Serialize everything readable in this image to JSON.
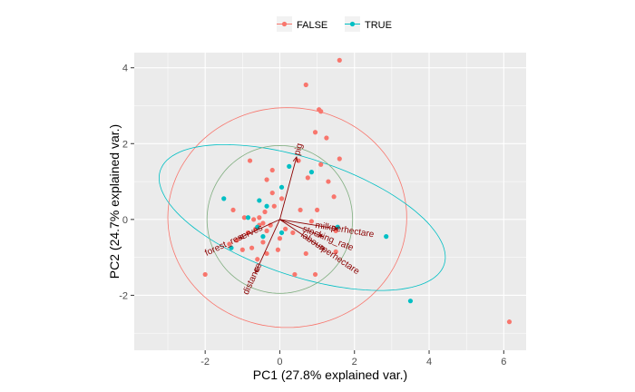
{
  "chart_data": {
    "type": "scatter",
    "subtype": "pca-biplot",
    "xlabel": "PC1 (27.8% explained var.)",
    "ylabel": "PC2 (24.7% explained var.)",
    "xlim": [
      -3.9,
      6.6
    ],
    "ylim": [
      -3.45,
      4.4
    ],
    "x_ticks": [
      -2,
      0,
      2,
      4,
      6
    ],
    "y_ticks": [
      -2,
      0,
      2,
      4
    ],
    "grid": true,
    "background": "#ebebeb",
    "legend_position": "top",
    "series": [
      {
        "name": "FALSE",
        "color": "#f8766d",
        "points": [
          [
            1.6,
            4.2
          ],
          [
            0.7,
            3.55
          ],
          [
            1.05,
            2.9
          ],
          [
            1.1,
            2.85
          ],
          [
            0.95,
            2.3
          ],
          [
            1.25,
            2.15
          ],
          [
            0.5,
            1.55
          ],
          [
            0.75,
            1.1
          ],
          [
            1.1,
            1.45
          ],
          [
            1.6,
            1.6
          ],
          [
            1.3,
            1.0
          ],
          [
            1.45,
            0.6
          ],
          [
            -0.2,
            1.3
          ],
          [
            -0.35,
            1.05
          ],
          [
            -0.8,
            1.55
          ],
          [
            -0.2,
            0.7
          ],
          [
            0.05,
            0.55
          ],
          [
            0.55,
            0.25
          ],
          [
            1.0,
            0.25
          ],
          [
            -0.15,
            0.35
          ],
          [
            -0.4,
            0.2
          ],
          [
            -0.55,
            0.05
          ],
          [
            -0.7,
            0.0
          ],
          [
            -0.95,
            0.05
          ],
          [
            -0.45,
            -0.1
          ],
          [
            -0.55,
            -0.15
          ],
          [
            -0.65,
            -0.25
          ],
          [
            -0.85,
            -0.35
          ],
          [
            -0.35,
            -0.3
          ],
          [
            -0.25,
            -0.15
          ],
          [
            0.15,
            -0.25
          ],
          [
            0.35,
            -0.35
          ],
          [
            0.85,
            -0.05
          ],
          [
            1.5,
            -0.3
          ],
          [
            0.0,
            -0.5
          ],
          [
            -0.45,
            -0.6
          ],
          [
            -0.75,
            -0.75
          ],
          [
            -1.0,
            -0.8
          ],
          [
            -1.15,
            -0.55
          ],
          [
            -1.35,
            -0.65
          ],
          [
            -1.25,
            0.25
          ],
          [
            -0.35,
            -0.9
          ],
          [
            0.7,
            -0.9
          ],
          [
            -0.05,
            -0.8
          ],
          [
            -0.6,
            -1.05
          ],
          [
            1.5,
            -0.85
          ],
          [
            0.4,
            -1.45
          ],
          [
            0.95,
            -1.45
          ],
          [
            -2.0,
            -1.45
          ],
          [
            6.15,
            -2.7
          ]
        ]
      },
      {
        "name": "TRUE",
        "color": "#00bfc4",
        "points": [
          [
            0.25,
            1.4
          ],
          [
            0.85,
            1.25
          ],
          [
            0.05,
            0.85
          ],
          [
            -1.5,
            0.55
          ],
          [
            -0.55,
            0.5
          ],
          [
            -0.35,
            0.35
          ],
          [
            -0.85,
            0.05
          ],
          [
            -0.6,
            -0.2
          ],
          [
            -0.45,
            -0.45
          ],
          [
            0.05,
            -0.35
          ],
          [
            -1.3,
            -0.75
          ],
          [
            1.55,
            -0.2
          ],
          [
            2.85,
            -0.45
          ],
          [
            3.5,
            -2.15
          ]
        ]
      }
    ],
    "variable_arrows": [
      {
        "name": "pig",
        "x": 0.45,
        "y": 1.65
      },
      {
        "name": "milkperhectare",
        "x": 1.55,
        "y": -0.25
      },
      {
        "name": "stocking_rate",
        "x": 1.15,
        "y": -0.45
      },
      {
        "name": "labourperhectare",
        "x": 1.2,
        "y": -0.8
      },
      {
        "name": "forest_reserves",
        "x": -1.1,
        "y": -0.5
      },
      {
        "name": "distance",
        "x": -0.65,
        "y": -1.4
      }
    ],
    "ellipses": [
      {
        "group": "FALSE",
        "color": "#f8766d",
        "cx": 0.2,
        "cy": 0.05,
        "rx": 3.2,
        "ry": 2.9,
        "angle": 0
      },
      {
        "group": "TRUE",
        "color": "#00bfc4",
        "cx": 0.6,
        "cy": 0.05,
        "rx": 4.0,
        "ry": 1.55,
        "angle": -18
      },
      {
        "group": "circle",
        "color": "#7fae7f",
        "cx": 0.0,
        "cy": 0.0,
        "rx": 1.95,
        "ry": 1.95,
        "angle": 0
      }
    ]
  }
}
